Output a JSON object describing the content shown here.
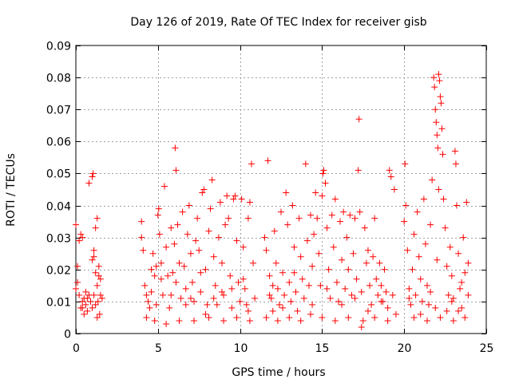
{
  "chart_data": {
    "type": "scatter",
    "title": "Day 126 of 2019, Rate Of TEC Index for receiver gisb",
    "xlabel": "GPS time / hours",
    "ylabel": "ROTI / TECUs",
    "xlim": [
      0,
      25
    ],
    "ylim": [
      0,
      0.09
    ],
    "x_ticks": [
      0,
      5,
      10,
      15,
      20,
      25
    ],
    "x_tick_labels": [
      "0",
      "5",
      "10",
      "15",
      "20",
      "25"
    ],
    "y_ticks": [
      0,
      0.01,
      0.02,
      0.03,
      0.04,
      0.05,
      0.06,
      0.07,
      0.08,
      0.09
    ],
    "y_tick_labels": [
      "0",
      "0.01",
      "0.02",
      "0.03",
      "0.04",
      "0.05",
      "0.06",
      "0.07",
      "0.08",
      "0.09"
    ],
    "grid": true,
    "marker": "+",
    "marker_color": "#ff0000",
    "series": [
      {
        "name": "ROTI",
        "points": [
          [
            0.0,
            0.034
          ],
          [
            0.1,
            0.016
          ],
          [
            0.2,
            0.012
          ],
          [
            0.3,
            0.008
          ],
          [
            0.4,
            0.01
          ],
          [
            0.5,
            0.011
          ],
          [
            0.6,
            0.009
          ],
          [
            0.7,
            0.007
          ],
          [
            0.2,
            0.029
          ],
          [
            0.3,
            0.031
          ],
          [
            0.4,
            0.03
          ],
          [
            0.1,
            0.021
          ],
          [
            0.0,
            0.014
          ],
          [
            0.5,
            0.006
          ],
          [
            0.8,
            0.012
          ],
          [
            0.9,
            0.01
          ],
          [
            1.0,
            0.008
          ],
          [
            1.1,
            0.012
          ],
          [
            1.2,
            0.019
          ],
          [
            1.3,
            0.015
          ],
          [
            1.4,
            0.021
          ],
          [
            1.5,
            0.012
          ],
          [
            1.2,
            0.009
          ],
          [
            1.3,
            0.005
          ],
          [
            1.0,
            0.023
          ],
          [
            1.1,
            0.024
          ],
          [
            1.2,
            0.033
          ],
          [
            1.3,
            0.036
          ],
          [
            0.8,
            0.047
          ],
          [
            1.0,
            0.049
          ],
          [
            1.05,
            0.05
          ],
          [
            1.1,
            0.026
          ],
          [
            1.4,
            0.018
          ],
          [
            1.5,
            0.017
          ],
          [
            1.6,
            0.011
          ],
          [
            0.6,
            0.013
          ],
          [
            0.7,
            0.011
          ],
          [
            0.4,
            0.008
          ],
          [
            1.45,
            0.006
          ],
          [
            1.35,
            0.01
          ],
          [
            4.0,
            0.03
          ],
          [
            4.0,
            0.035
          ],
          [
            4.1,
            0.026
          ],
          [
            4.2,
            0.015
          ],
          [
            4.3,
            0.012
          ],
          [
            4.4,
            0.01
          ],
          [
            4.5,
            0.008
          ],
          [
            4.6,
            0.02
          ],
          [
            4.7,
            0.025
          ],
          [
            4.8,
            0.018
          ],
          [
            4.9,
            0.009
          ],
          [
            5.0,
            0.037
          ],
          [
            5.05,
            0.039
          ],
          [
            5.1,
            0.031
          ],
          [
            5.2,
            0.022
          ],
          [
            5.3,
            0.012
          ],
          [
            5.4,
            0.046
          ],
          [
            5.5,
            0.027
          ],
          [
            5.6,
            0.018
          ],
          [
            5.7,
            0.008
          ],
          [
            5.8,
            0.033
          ],
          [
            5.9,
            0.019
          ],
          [
            6.0,
            0.028
          ],
          [
            6.05,
            0.058
          ],
          [
            6.1,
            0.051
          ],
          [
            6.2,
            0.034
          ],
          [
            6.3,
            0.022
          ],
          [
            6.4,
            0.011
          ],
          [
            6.5,
            0.038
          ],
          [
            6.6,
            0.021
          ],
          [
            6.7,
            0.014
          ],
          [
            6.8,
            0.031
          ],
          [
            6.9,
            0.04
          ],
          [
            7.0,
            0.025
          ],
          [
            7.1,
            0.016
          ],
          [
            7.2,
            0.01
          ],
          [
            7.3,
            0.029
          ],
          [
            7.4,
            0.036
          ],
          [
            7.5,
            0.026
          ],
          [
            7.6,
            0.013
          ],
          [
            7.7,
            0.044
          ],
          [
            7.8,
            0.045
          ],
          [
            7.9,
            0.02
          ],
          [
            8.0,
            0.009
          ],
          [
            8.1,
            0.032
          ],
          [
            8.2,
            0.039
          ],
          [
            8.3,
            0.048
          ],
          [
            8.4,
            0.024
          ],
          [
            8.5,
            0.015
          ],
          [
            8.6,
            0.009
          ],
          [
            8.7,
            0.03
          ],
          [
            8.8,
            0.041
          ],
          [
            8.9,
            0.022
          ],
          [
            9.0,
            0.012
          ],
          [
            9.1,
            0.034
          ],
          [
            9.2,
            0.043
          ],
          [
            9.3,
            0.036
          ],
          [
            9.4,
            0.018
          ],
          [
            9.5,
            0.008
          ],
          [
            9.6,
            0.042
          ],
          [
            9.7,
            0.043
          ],
          [
            9.8,
            0.029
          ],
          [
            9.9,
            0.016
          ],
          [
            10.0,
            0.01
          ],
          [
            10.1,
            0.042
          ],
          [
            10.2,
            0.027
          ],
          [
            10.3,
            0.014
          ],
          [
            10.4,
            0.009
          ],
          [
            10.5,
            0.036
          ],
          [
            10.6,
            0.041
          ],
          [
            10.7,
            0.053
          ],
          [
            10.8,
            0.022
          ],
          [
            10.9,
            0.011
          ],
          [
            4.3,
            0.005
          ],
          [
            4.8,
            0.004
          ],
          [
            5.5,
            0.003
          ],
          [
            6.3,
            0.004
          ],
          [
            7.2,
            0.004
          ],
          [
            8.1,
            0.005
          ],
          [
            9.0,
            0.004
          ],
          [
            9.8,
            0.005
          ],
          [
            10.6,
            0.004
          ],
          [
            5.2,
            0.017
          ],
          [
            6.7,
            0.009
          ],
          [
            7.6,
            0.019
          ],
          [
            8.9,
            0.013
          ],
          [
            10.2,
            0.017
          ],
          [
            10.5,
            0.007
          ],
          [
            4.6,
            0.013
          ],
          [
            5.8,
            0.012
          ],
          [
            7.0,
            0.011
          ],
          [
            8.4,
            0.011
          ],
          [
            9.5,
            0.014
          ],
          [
            4.9,
            0.021
          ],
          [
            6.1,
            0.016
          ],
          [
            7.9,
            0.006
          ],
          [
            11.5,
            0.03
          ],
          [
            11.6,
            0.026
          ],
          [
            11.7,
            0.054
          ],
          [
            11.8,
            0.018
          ],
          [
            11.9,
            0.011
          ],
          [
            12.0,
            0.007
          ],
          [
            12.1,
            0.032
          ],
          [
            12.2,
            0.022
          ],
          [
            12.3,
            0.014
          ],
          [
            12.4,
            0.009
          ],
          [
            12.5,
            0.038
          ],
          [
            12.6,
            0.019
          ],
          [
            12.7,
            0.012
          ],
          [
            12.8,
            0.044
          ],
          [
            12.9,
            0.034
          ],
          [
            13.0,
            0.016
          ],
          [
            13.1,
            0.01
          ],
          [
            13.2,
            0.04
          ],
          [
            13.3,
            0.027
          ],
          [
            13.4,
            0.013
          ],
          [
            13.5,
            0.007
          ],
          [
            13.6,
            0.036
          ],
          [
            13.7,
            0.024
          ],
          [
            13.8,
            0.017
          ],
          [
            13.9,
            0.011
          ],
          [
            14.0,
            0.053
          ],
          [
            14.1,
            0.029
          ],
          [
            14.2,
            0.015
          ],
          [
            14.3,
            0.037
          ],
          [
            14.4,
            0.009
          ],
          [
            11.6,
            0.005
          ],
          [
            12.3,
            0.004
          ],
          [
            13.0,
            0.005
          ],
          [
            13.7,
            0.004
          ],
          [
            14.3,
            0.006
          ],
          [
            12.0,
            0.015
          ],
          [
            13.3,
            0.019
          ],
          [
            11.8,
            0.012
          ],
          [
            12.6,
            0.008
          ],
          [
            14.4,
            0.021
          ],
          [
            14.5,
            0.031
          ],
          [
            14.6,
            0.044
          ],
          [
            14.7,
            0.036
          ],
          [
            14.8,
            0.025
          ],
          [
            14.9,
            0.015
          ],
          [
            15.0,
            0.043
          ],
          [
            15.05,
            0.05
          ],
          [
            15.1,
            0.051
          ],
          [
            15.2,
            0.047
          ],
          [
            15.3,
            0.033
          ],
          [
            15.4,
            0.02
          ],
          [
            15.5,
            0.011
          ],
          [
            15.6,
            0.037
          ],
          [
            15.7,
            0.027
          ],
          [
            15.8,
            0.042
          ],
          [
            15.9,
            0.016
          ],
          [
            16.0,
            0.01
          ],
          [
            16.1,
            0.035
          ],
          [
            16.2,
            0.023
          ],
          [
            16.3,
            0.038
          ],
          [
            16.4,
            0.014
          ],
          [
            16.5,
            0.03
          ],
          [
            16.6,
            0.02
          ],
          [
            16.7,
            0.037
          ],
          [
            16.8,
            0.012
          ],
          [
            16.9,
            0.025
          ],
          [
            17.0,
            0.036
          ],
          [
            17.1,
            0.017
          ],
          [
            17.2,
            0.051
          ],
          [
            17.25,
            0.067
          ],
          [
            17.3,
            0.038
          ],
          [
            17.4,
            0.013
          ],
          [
            17.5,
            0.004
          ],
          [
            17.6,
            0.033
          ],
          [
            17.7,
            0.022
          ],
          [
            17.8,
            0.026
          ],
          [
            17.9,
            0.015
          ],
          [
            18.0,
            0.009
          ],
          [
            18.1,
            0.024
          ],
          [
            18.2,
            0.036
          ],
          [
            18.3,
            0.017
          ],
          [
            18.4,
            0.012
          ],
          [
            18.5,
            0.022
          ],
          [
            18.6,
            0.015
          ],
          [
            18.7,
            0.01
          ],
          [
            18.8,
            0.02
          ],
          [
            18.9,
            0.013
          ],
          [
            19.0,
            0.008
          ],
          [
            19.1,
            0.051
          ],
          [
            19.2,
            0.049
          ],
          [
            19.3,
            0.012
          ],
          [
            19.4,
            0.045
          ],
          [
            19.5,
            0.006
          ],
          [
            15.0,
            0.005
          ],
          [
            15.8,
            0.004
          ],
          [
            16.6,
            0.005
          ],
          [
            17.4,
            0.002
          ],
          [
            18.2,
            0.005
          ],
          [
            19.0,
            0.004
          ],
          [
            15.3,
            0.014
          ],
          [
            16.2,
            0.009
          ],
          [
            17.0,
            0.011
          ],
          [
            17.8,
            0.007
          ],
          [
            18.6,
            0.01
          ],
          [
            20.0,
            0.035
          ],
          [
            20.05,
            0.053
          ],
          [
            20.1,
            0.04
          ],
          [
            20.2,
            0.026
          ],
          [
            20.3,
            0.014
          ],
          [
            20.4,
            0.009
          ],
          [
            20.5,
            0.02
          ],
          [
            20.6,
            0.031
          ],
          [
            20.7,
            0.012
          ],
          [
            20.8,
            0.038
          ],
          [
            20.9,
            0.024
          ],
          [
            21.0,
            0.017
          ],
          [
            21.1,
            0.01
          ],
          [
            21.2,
            0.042
          ],
          [
            21.3,
            0.028
          ],
          [
            21.4,
            0.015
          ],
          [
            21.5,
            0.009
          ],
          [
            21.6,
            0.034
          ],
          [
            21.7,
            0.048
          ],
          [
            21.8,
            0.08
          ],
          [
            21.85,
            0.077
          ],
          [
            21.9,
            0.07
          ],
          [
            21.95,
            0.066
          ],
          [
            22.0,
            0.062
          ],
          [
            22.05,
            0.058
          ],
          [
            22.1,
            0.081
          ],
          [
            22.15,
            0.079
          ],
          [
            22.2,
            0.074
          ],
          [
            22.25,
            0.072
          ],
          [
            22.3,
            0.064
          ],
          [
            22.35,
            0.056
          ],
          [
            22.1,
            0.045
          ],
          [
            22.4,
            0.042
          ],
          [
            22.5,
            0.033
          ],
          [
            22.6,
            0.021
          ],
          [
            22.7,
            0.012
          ],
          [
            22.8,
            0.027
          ],
          [
            22.9,
            0.018
          ],
          [
            23.0,
            0.011
          ],
          [
            23.1,
            0.057
          ],
          [
            23.15,
            0.053
          ],
          [
            23.2,
            0.04
          ],
          [
            23.3,
            0.025
          ],
          [
            23.4,
            0.014
          ],
          [
            23.5,
            0.008
          ],
          [
            23.6,
            0.03
          ],
          [
            23.7,
            0.019
          ],
          [
            23.8,
            0.041
          ],
          [
            23.9,
            0.012
          ],
          [
            20.6,
            0.005
          ],
          [
            21.4,
            0.004
          ],
          [
            22.2,
            0.005
          ],
          [
            23.0,
            0.004
          ],
          [
            23.7,
            0.005
          ],
          [
            21.0,
            0.006
          ],
          [
            21.9,
            0.008
          ],
          [
            22.6,
            0.007
          ],
          [
            23.3,
            0.007
          ],
          [
            20.3,
            0.011
          ],
          [
            21.6,
            0.013
          ],
          [
            22.9,
            0.01
          ],
          [
            23.9,
            0.022
          ],
          [
            23.5,
            0.016
          ],
          [
            22.0,
            0.023
          ]
        ]
      }
    ]
  }
}
